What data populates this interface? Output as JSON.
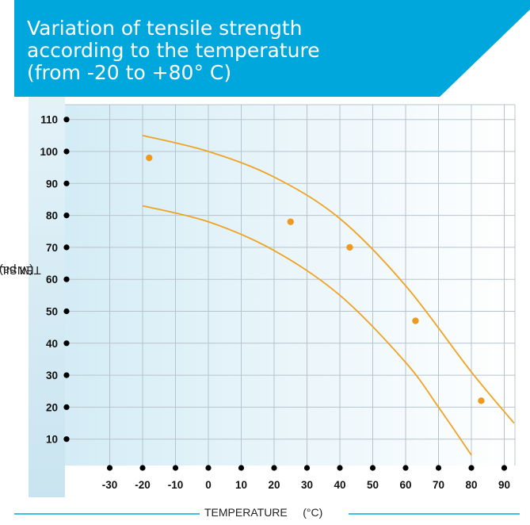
{
  "title_lines": [
    "Variation of tensile strength",
    "according to the temperature",
    "(from -20 to +80° C)"
  ],
  "colors": {
    "banner": "#00a7dc",
    "curve": "#f0a323",
    "point": "#ef9a1f",
    "grid": "#b8c4cc",
    "plot_fill_left": "#d4ecf6",
    "plot_fill_right": "#ffffff"
  },
  "chart_data": {
    "type": "scatter",
    "title": "Variation of tensile strength according to the temperature (from -20 to +80° C)",
    "xlabel": "TEMPERATURE",
    "xunit": "(°C)",
    "ylabel": "TENSILE",
    "yunit": "(M pa)",
    "xlim": [
      -40,
      95
    ],
    "ylim": [
      0,
      110
    ],
    "xticks": [
      -30,
      -20,
      -10,
      0,
      10,
      20,
      30,
      40,
      50,
      60,
      70,
      80,
      90
    ],
    "yticks": [
      10,
      20,
      30,
      40,
      50,
      60,
      70,
      80,
      90,
      100,
      110
    ],
    "grid": true,
    "points": [
      {
        "x": -18,
        "y": 98
      },
      {
        "x": 25,
        "y": 78
      },
      {
        "x": 43,
        "y": 70
      },
      {
        "x": 63,
        "y": 47
      },
      {
        "x": 83,
        "y": 22
      }
    ],
    "curves": [
      {
        "x": [
          -20,
          0,
          20,
          40,
          60,
          80,
          93
        ],
        "y": [
          105,
          100,
          92,
          79,
          58,
          31,
          15
        ]
      },
      {
        "x": [
          -20,
          0,
          20,
          40,
          60,
          70,
          80
        ],
        "y": [
          83,
          78,
          69,
          55,
          34,
          20,
          5
        ]
      }
    ]
  }
}
